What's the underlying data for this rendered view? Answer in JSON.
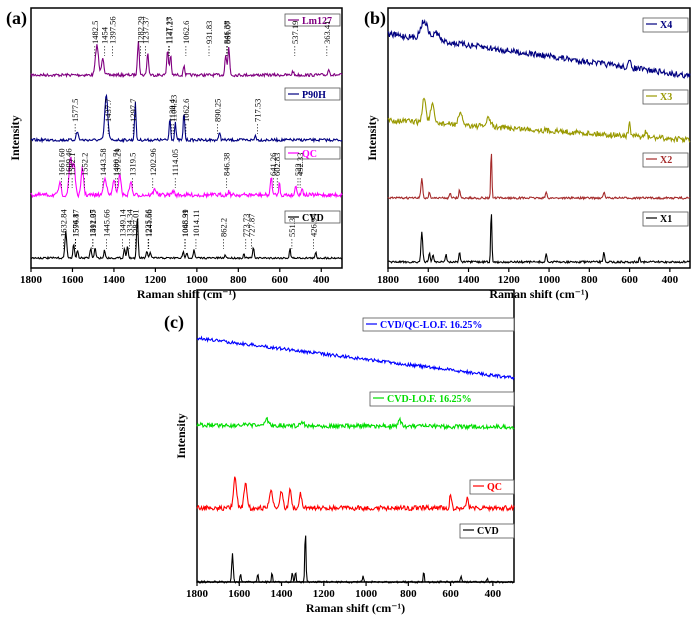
{
  "chart_data": [
    {
      "type": "line",
      "panel_label": "(a)",
      "xlabel": "Raman shift (cm⁻¹)",
      "ylabel": "Intensity",
      "xlim": [
        1800,
        300
      ],
      "xticks": [
        "1800",
        "1600",
        "1400",
        "1200",
        "1000",
        "800",
        "600",
        "400"
      ],
      "series": [
        {
          "name": "Lm127",
          "color": "#800080",
          "peaks": [
            "1482.5",
            "1454",
            "1397.56",
            "1282.29",
            "1237.37",
            "1141.27",
            "1127.13",
            "1062.6",
            "931.83",
            "861.07",
            "846.38",
            "537.19",
            "363.41"
          ]
        },
        {
          "name": "P90H",
          "color": "#000080",
          "peaks": [
            "1577.5",
            "1437.7",
            "1297.7",
            "1130.4",
            "1104.23",
            "1062.6",
            "890.25",
            "717.53"
          ]
        },
        {
          "name": "QC",
          "color": "#ff00ff",
          "peaks": [
            "1609.46",
            "1661.60",
            "1592.1",
            "1552.2",
            "1443.58",
            "1400.71",
            "1372.29",
            "1319.5",
            "1202.96",
            "1114.05",
            "846.38",
            "641.26",
            "602.83",
            "522",
            "492.33"
          ]
        },
        {
          "name": "CVD",
          "color": "#000000",
          "peaks": [
            "1632.84",
            "1594.17",
            "1576.8",
            "1512.05",
            "1491.37",
            "1445.66",
            "1349.14",
            "1334.34",
            "1287.01",
            "1241.66",
            "1225.56",
            "1065.99",
            "1048.31",
            "1014.11",
            "862.2",
            "773.73",
            "727.87",
            "551.3",
            "426.94"
          ]
        }
      ]
    },
    {
      "type": "line",
      "panel_label": "(b)",
      "xlabel": "Raman shift (cm⁻¹)",
      "ylabel": "Intensity",
      "xlim": [
        1800,
        300
      ],
      "xticks": [
        "1800",
        "1600",
        "1400",
        "1200",
        "1000",
        "800",
        "600",
        "400"
      ],
      "series": [
        {
          "name": "X4",
          "color": "#000080"
        },
        {
          "name": "X3",
          "color": "#999900"
        },
        {
          "name": "X2",
          "color": "#a52a2a"
        },
        {
          "name": "X1",
          "color": "#000000"
        }
      ]
    },
    {
      "type": "line",
      "panel_label": "(c)",
      "xlabel": "Raman shift (cm⁻¹)",
      "ylabel": "Intensity",
      "xlim": [
        1800,
        300
      ],
      "xticks": [
        "1800",
        "1600",
        "1400",
        "1200",
        "1000",
        "800",
        "600",
        "400"
      ],
      "series": [
        {
          "name": "CVD/QC-LO.F. 16.25%",
          "color": "#0000ff"
        },
        {
          "name": "CVD-LO.F. 16.25%",
          "color": "#00dd00"
        },
        {
          "name": "QC",
          "color": "#ff0000"
        },
        {
          "name": "CVD",
          "color": "#000000"
        }
      ]
    }
  ]
}
